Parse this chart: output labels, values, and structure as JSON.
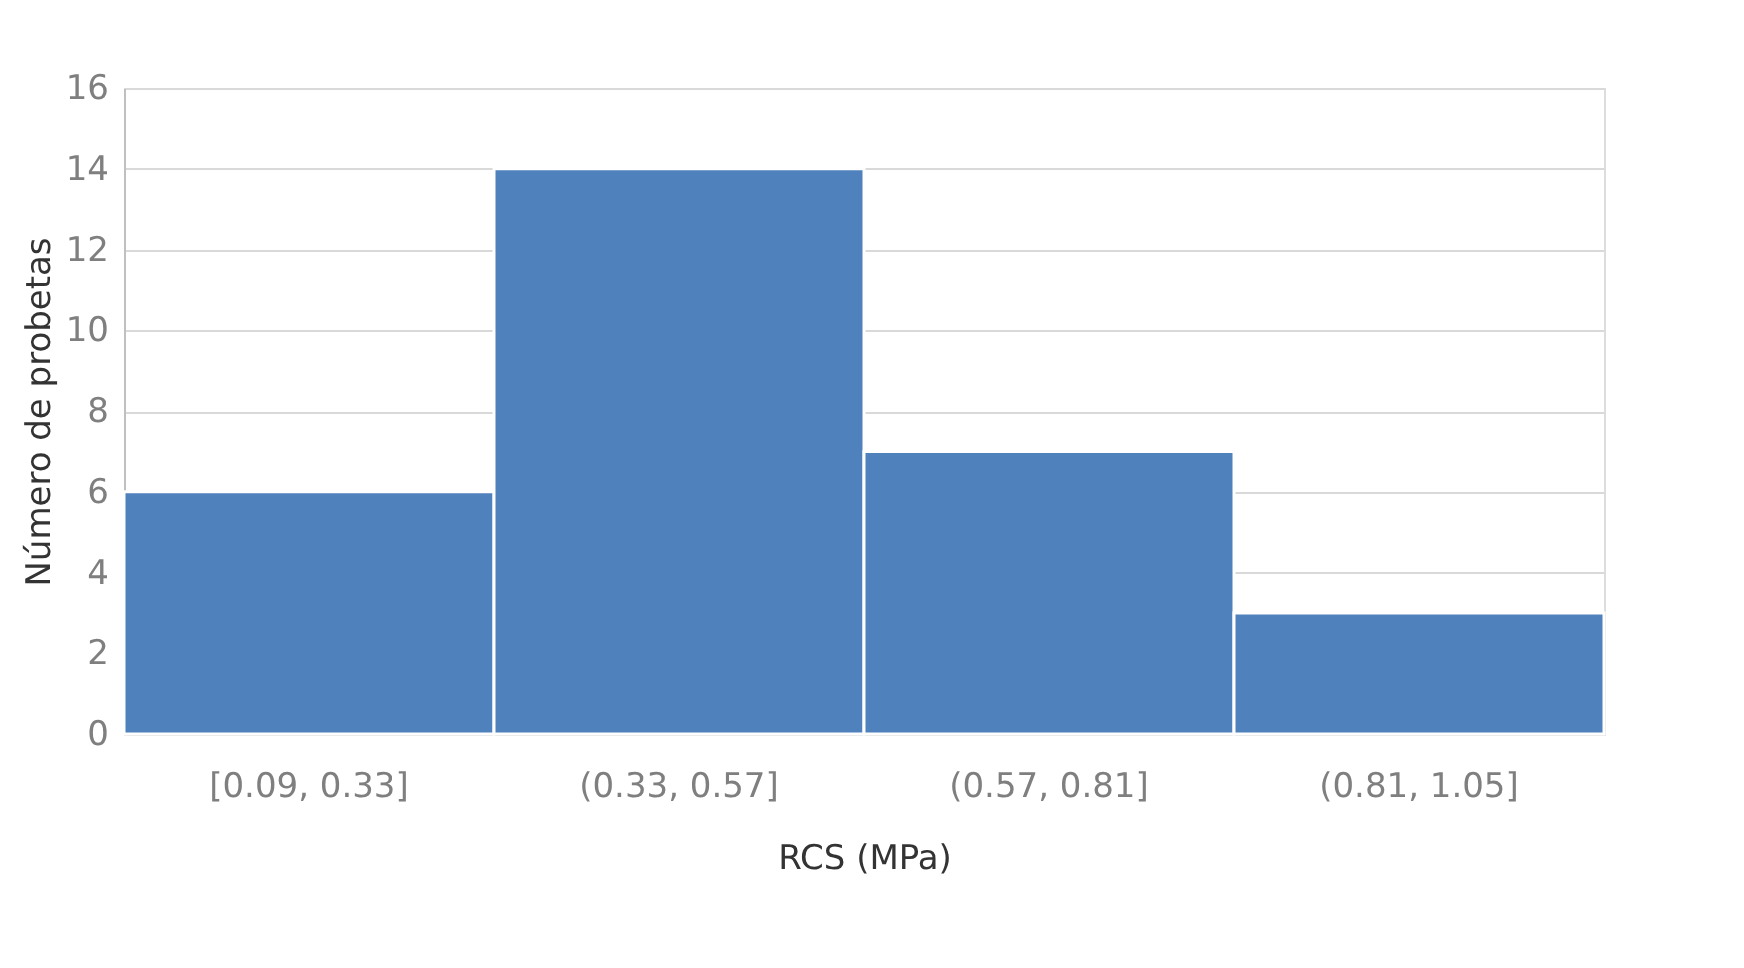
{
  "chart_data": {
    "type": "bar",
    "xlabel": "RCS (MPa)",
    "ylabel": "Número de probetas",
    "categories": [
      "[0.09, 0.33]",
      "(0.33, 0.57]",
      "(0.57, 0.81]",
      "(0.81, 1.05]"
    ],
    "values": [
      6,
      14,
      7,
      3
    ],
    "color": "#4f81bd",
    "ylim": [
      0,
      16
    ],
    "yticks": [
      0,
      2,
      4,
      6,
      8,
      10,
      12,
      14,
      16
    ],
    "grid": "y"
  }
}
